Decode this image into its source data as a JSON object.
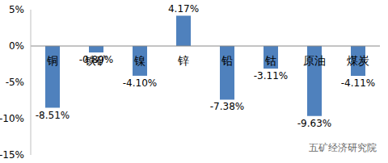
{
  "chart_data": {
    "type": "bar",
    "categories": [
      "铜",
      "铁矿",
      "镍",
      "锌",
      "铅",
      "钴",
      "原油",
      "煤炭"
    ],
    "values": [
      -8.51,
      -0.89,
      -4.1,
      4.17,
      -7.38,
      -3.11,
      -9.63,
      -4.11
    ],
    "value_labels": [
      "-8.51%",
      "-0.89%",
      "-4.10%",
      "4.17%",
      "-7.38%",
      "-3.11%",
      "-9.63%",
      "-4.11%"
    ],
    "color": "#4f81bd",
    "ylim": [
      -15,
      5
    ],
    "yticks": [
      {
        "value": -15,
        "label": "-15%"
      },
      {
        "value": -10,
        "label": "-10%"
      },
      {
        "value": -5,
        "label": "-5%"
      },
      {
        "value": 0,
        "label": "0%"
      },
      {
        "value": 5,
        "label": "5%"
      }
    ],
    "grid": false,
    "data_labels": true,
    "annotations": [
      "五矿经济研究院"
    ]
  }
}
